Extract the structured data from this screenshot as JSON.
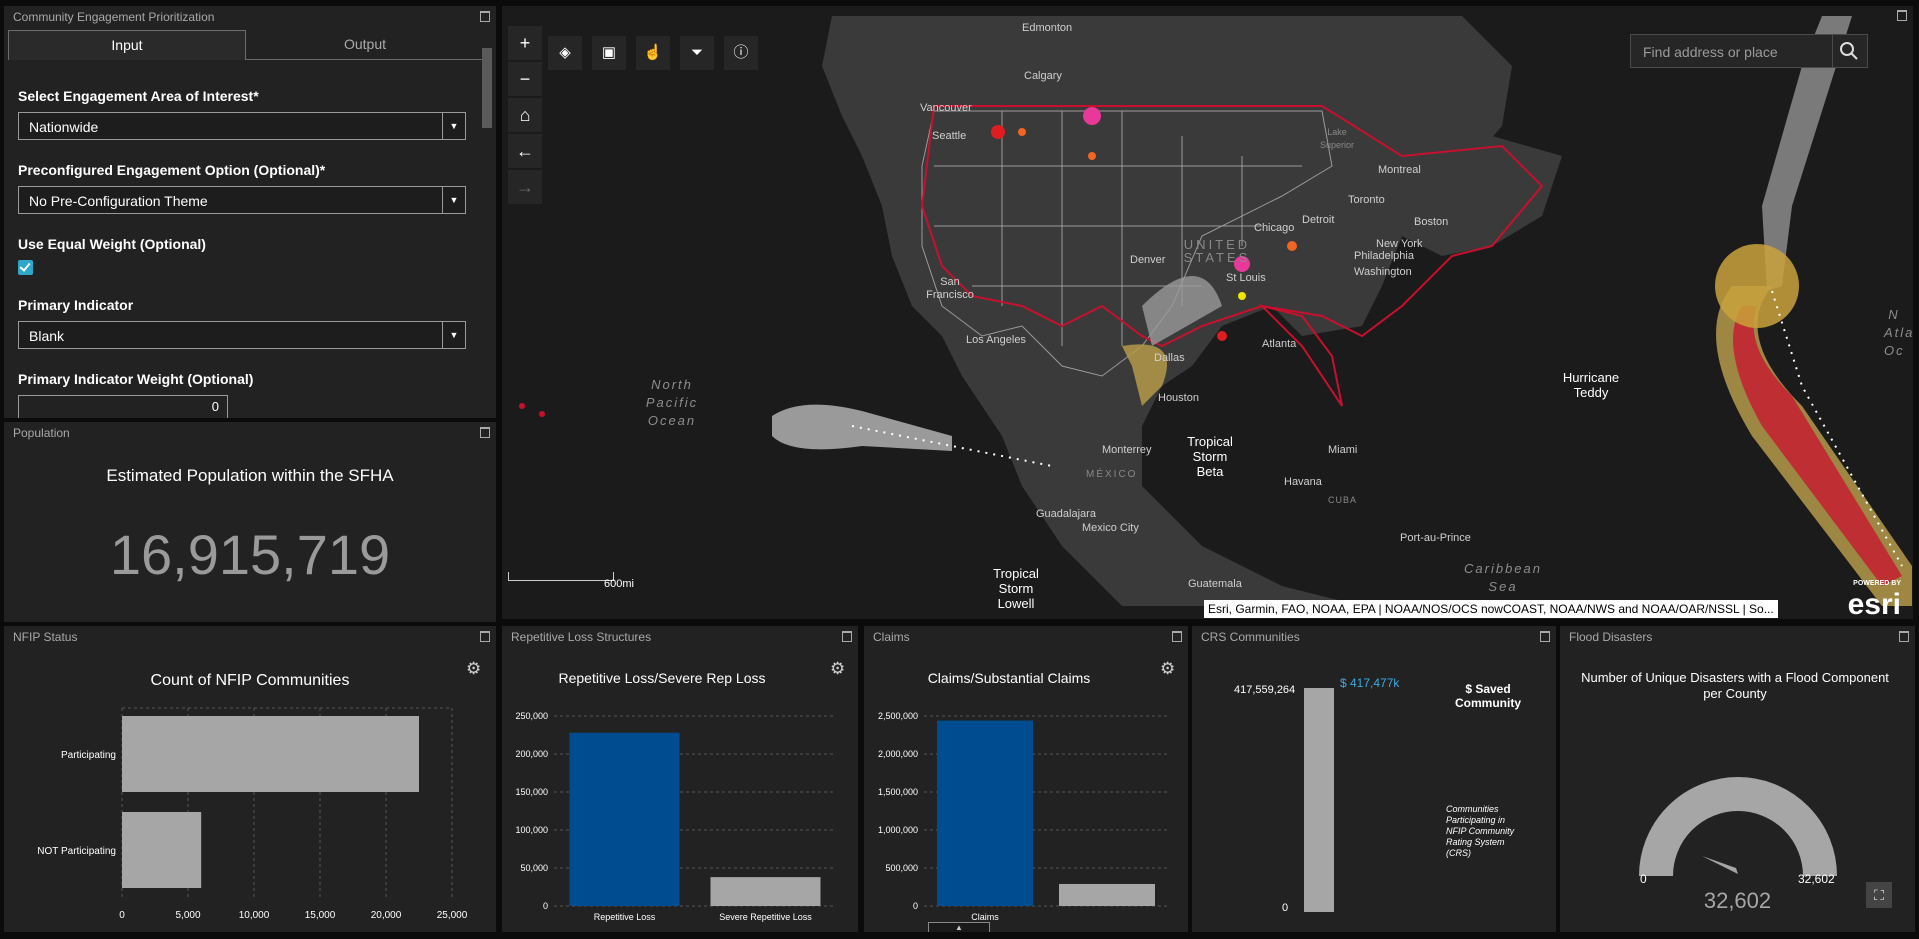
{
  "input_panel": {
    "title": "Community Engagement Prioritization",
    "tabs": [
      {
        "label": "Input"
      },
      {
        "label": "Output"
      }
    ],
    "fields": {
      "area": {
        "label": "Select Engagement Area of Interest*",
        "value": "Nationwide"
      },
      "preconfig": {
        "label": "Preconfigured Engagement Option (Optional)*",
        "value": "No Pre-Configuration Theme"
      },
      "equal_weight": {
        "label": "Use Equal Weight (Optional)",
        "checked": true
      },
      "primary": {
        "label": "Primary Indicator",
        "value": "Blank"
      },
      "primary_weight": {
        "label": "Primary Indicator Weight (Optional)",
        "value": "0"
      }
    }
  },
  "map": {
    "search_placeholder": "Find address or place",
    "toolbar_icons": [
      "layers-icon",
      "basemap-icon",
      "select-icon",
      "filter-icon",
      "info-icon"
    ],
    "zoom_icons": [
      "plus-icon",
      "minus-icon",
      "home-icon",
      "back-icon",
      "forward-icon"
    ],
    "attribution": "Esri, Garmin, FAO, NOAA, EPA | NOAA/NOS/OCS nowCOAST, NOAA/NWS and NOAA/OAR/NSSL | So...",
    "scale_label": "600mi",
    "esri_logo": "esri",
    "esri_powered": "POWERED BY",
    "places": {
      "edmonton": "Edmonton",
      "calgary": "Calgary",
      "vancouver": "Vancouver",
      "seattle": "Seattle",
      "montreal": "Montreal",
      "toronto": "Toronto",
      "detroit": "Detroit",
      "chicago": "Chicago",
      "boston": "Boston",
      "new_york": "New York",
      "philadelphia": "Philadelphia",
      "washington": "Washington",
      "denver": "Denver",
      "san_francisco": "San Francisco",
      "los_angeles": "Los Angeles",
      "st_louis": "St Louis",
      "dallas": "Dallas",
      "atlanta": "Atlanta",
      "houston": "Houston",
      "monterrey": "Monterrey",
      "miami": "Miami",
      "havana": "Havana",
      "guadalajara": "Guadalajara",
      "mexico_city": "Mexico City",
      "port_au_prince": "Port-au-Prince",
      "guatemala": "Guatemala",
      "mexico": "MÉXICO",
      "cuba": "CUBA",
      "lake_superior": "Lake Superior",
      "united_states": "UNITED STATES",
      "north_pacific": "North Pacific Ocean",
      "caribbean": "Caribbean Sea",
      "atlantic": "N Atla Oc"
    },
    "storms": {
      "teddy": "Hurricane Teddy",
      "beta": "Tropical Storm Beta",
      "lowell": "Tropical Storm Lowell"
    }
  },
  "population": {
    "title": "Population",
    "subtitle": "Estimated Population within the SFHA",
    "value": "16,915,719"
  },
  "nfip": {
    "title": "NFIP Status",
    "chart_title": "Count of NFIP Communities",
    "chart_data": {
      "type": "bar",
      "orientation": "horizontal",
      "categories": [
        "Participating",
        "NOT Participating"
      ],
      "values": [
        22500,
        6000
      ],
      "xlim": [
        0,
        25000
      ],
      "ticks": [
        "0",
        "5,000",
        "10,000",
        "15,000",
        "20,000",
        "25,000"
      ],
      "color": "#a6a6a6"
    }
  },
  "repetitive": {
    "title": "Repetitive Loss Structures",
    "chart_title": "Repetitive Loss/Severe Rep Loss",
    "chart_data": {
      "type": "bar",
      "categories": [
        "Repetitive Loss",
        "Severe Repetitive Loss"
      ],
      "values": [
        228000,
        38000
      ],
      "ylim": [
        0,
        250000
      ],
      "ticks": [
        "0",
        "50,000",
        "100,000",
        "150,000",
        "200,000",
        "250,000"
      ],
      "colors": [
        "#004c91",
        "#a6a6a6"
      ]
    }
  },
  "claims": {
    "title": "Claims",
    "chart_title": "Claims/Substantial Claims",
    "chart_data": {
      "type": "bar",
      "categories": [
        "Claims",
        ""
      ],
      "values": [
        2440000,
        290000
      ],
      "ylim": [
        0,
        2500000
      ],
      "ticks": [
        "0",
        "500,000",
        "1,000,000",
        "1,500,000",
        "2,000,000",
        "2,500,000"
      ],
      "colors": [
        "#004c91",
        "#a6a6a6"
      ]
    }
  },
  "crs": {
    "title": "CRS Communities",
    "top_label": "417,559,264",
    "zero_label": "0",
    "value_label": "$ 417,477k",
    "legend": "$ Saved Community",
    "note": "Communities Participating in NFIP Community Rating System (CRS)",
    "accent": "#3fa9e0",
    "chart_data": {
      "type": "bar",
      "categories": [
        "$ Saved Community"
      ],
      "values": [
        417477000
      ],
      "ylim": [
        0,
        417559264
      ]
    }
  },
  "flood": {
    "title": "Flood Disasters",
    "chart_title": "Number of Unique Disasters with a Flood Component per County",
    "min": "0",
    "max": "32,602",
    "value": "32,602",
    "gauge": {
      "value": 32602,
      "max": 32602
    }
  },
  "colors": {
    "panel": "#222222",
    "border": "#0b0b0b",
    "accent": "#2ea7c8",
    "bar_blue": "#004c91",
    "bar_gray": "#a6a6a6"
  }
}
